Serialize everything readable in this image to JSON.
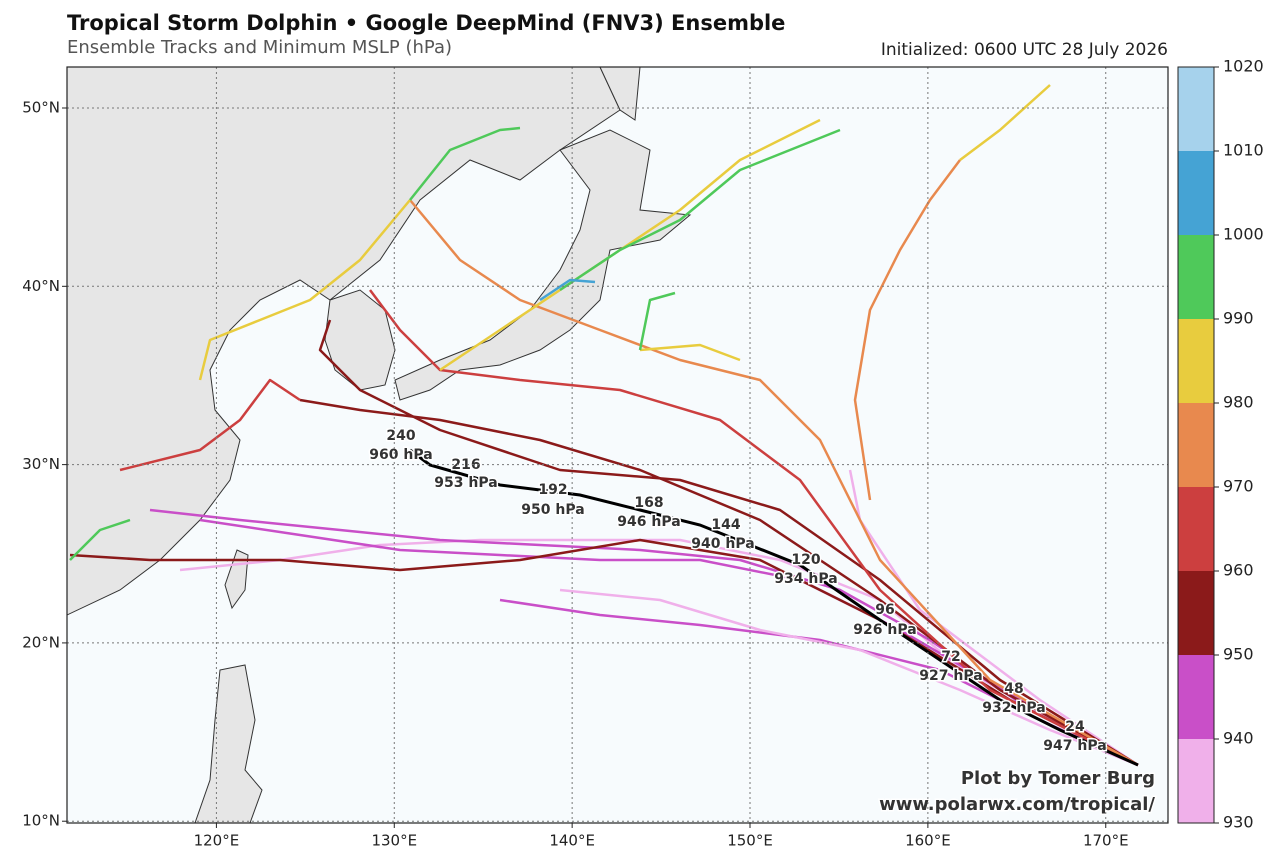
{
  "title": "Tropical Storm Dolphin • Google DeepMind (FNV3) Ensemble",
  "subtitle": "Ensemble Tracks and Minimum MSLP (hPa)",
  "initialized": "Initialized: 0600 UTC 28 July 2026",
  "map": {
    "lon_range": [
      111.6,
      173.5
    ],
    "lat_range": [
      9.9,
      52.3
    ],
    "lon_ticks": [
      {
        "value": 120,
        "label": "120°E"
      },
      {
        "value": 130,
        "label": "130°E"
      },
      {
        "value": 140,
        "label": "140°E"
      },
      {
        "value": 150,
        "label": "150°E"
      },
      {
        "value": 160,
        "label": "160°E"
      },
      {
        "value": 170,
        "label": "170°E"
      }
    ],
    "lat_ticks": [
      {
        "value": 10,
        "label": "10°N"
      },
      {
        "value": 20,
        "label": "20°N"
      },
      {
        "value": 30,
        "label": "30°N"
      },
      {
        "value": 40,
        "label": "40°N"
      },
      {
        "value": 50,
        "label": "50°N"
      }
    ],
    "grid": true
  },
  "colorbar": {
    "ticks": [
      930,
      940,
      950,
      960,
      970,
      980,
      990,
      1000,
      1010,
      1020
    ],
    "colors": [
      "#f0b0ea",
      "#c94fc8",
      "#8b1a1a",
      "#cc3f3f",
      "#e8894e",
      "#e8cc3e",
      "#4fc95a",
      "#45a3d4",
      "#a6d2ec"
    ]
  },
  "mean_track": [
    {
      "hour": 240,
      "pressure": "960 hPa"
    },
    {
      "hour": 216,
      "pressure": "953 hPa"
    },
    {
      "hour": 192,
      "pressure": "950 hPa"
    },
    {
      "hour": 168,
      "pressure": "946 hPa"
    },
    {
      "hour": 144,
      "pressure": "940 hPa"
    },
    {
      "hour": 120,
      "pressure": "934 hPa"
    },
    {
      "hour": 96,
      "pressure": "926 hPa"
    },
    {
      "hour": 72,
      "pressure": "927 hPa"
    },
    {
      "hour": 48,
      "pressure": "932 hPa"
    },
    {
      "hour": 24,
      "pressure": "947 hPa"
    }
  ],
  "credit": [
    "Plot by Tomer Burg",
    "www.polarwx.com/tropical/"
  ]
}
